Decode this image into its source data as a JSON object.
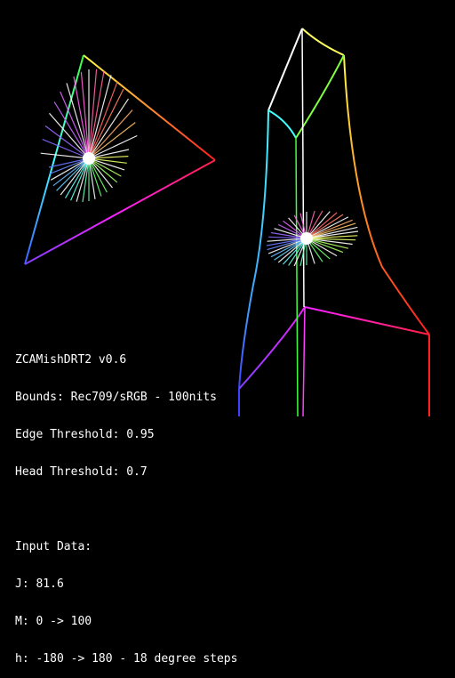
{
  "info": {
    "title": "ZCAMishDRT2 v0.6",
    "bounds": "Bounds: Rec709/sRGB - 100nits",
    "edge_threshold": "Edge Threshold: 0.95",
    "head_threshold": "Head Threshold: 0.7",
    "input_heading": "Input Data:",
    "j_value": "J: 81.6",
    "m_range": "M: 0 -> 100",
    "h_range": "h: -180 -> 180 - 18 degree steps"
  },
  "colors": {
    "background": "#000000",
    "text": "#ffffff"
  }
}
